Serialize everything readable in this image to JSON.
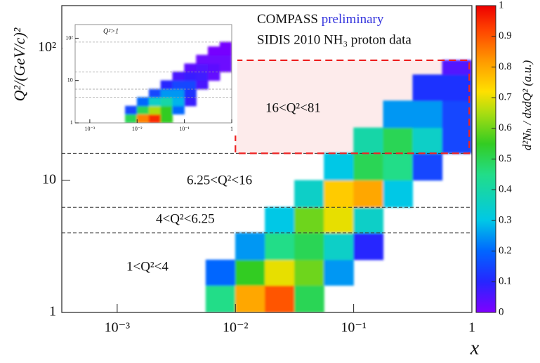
{
  "chart_data": [
    {
      "type": "heatmap",
      "title": "COMPASS",
      "title_tag": "preliminary",
      "title_tag_color": "#3333dd",
      "subtitle": "SIDIS 2010 NH₃ proton data",
      "x_label": "x",
      "y_label": "Q²/(GeV/c)²",
      "colorbar_label": "d²Nₕ / dxdQ² (a.u.)",
      "log_x": true,
      "log_y": true,
      "xlim": [
        0.00034,
        1
      ],
      "ylim": [
        1,
        210
      ],
      "xticks": [
        {
          "value": 0.001,
          "label": "10⁻³"
        },
        {
          "value": 0.01,
          "label": "10⁻²"
        },
        {
          "value": 0.1,
          "label": "10⁻¹"
        },
        1
      ],
      "yticks": [
        1,
        10,
        {
          "value": 100,
          "label": "10²"
        }
      ],
      "zlim": [
        0,
        1
      ],
      "zticks": [
        0,
        0.1,
        0.2,
        0.3,
        0.4,
        0.5,
        0.6,
        0.7,
        0.8,
        0.9,
        1
      ],
      "colorscale": [
        [
          0,
          "#7f00ff"
        ],
        [
          0.1,
          "#2626ff"
        ],
        [
          0.2,
          "#0066ff"
        ],
        [
          0.3,
          "#00c8e6"
        ],
        [
          0.45,
          "#22dd88"
        ],
        [
          0.55,
          "#33cc22"
        ],
        [
          0.65,
          "#aadd11"
        ],
        [
          0.72,
          "#ffe000"
        ],
        [
          0.82,
          "#ff9900"
        ],
        [
          0.92,
          "#ff4400"
        ],
        [
          1,
          "#ee0000"
        ]
      ],
      "xbins": [
        0.000316,
        0.000562,
        0.001,
        0.00178,
        0.00316,
        0.00562,
        0.01,
        0.0178,
        0.0316,
        0.0562,
        0.1,
        0.178,
        0.316,
        0.562,
        1
      ],
      "ybins": [
        1,
        1.6,
        2.5,
        4,
        6.25,
        10,
        16,
        25,
        40,
        63,
        81
      ],
      "z": [
        [
          null,
          null,
          null,
          null,
          null,
          0.45,
          0.8,
          0.9,
          0.5,
          null,
          null,
          null,
          null,
          null
        ],
        [
          null,
          null,
          null,
          null,
          null,
          0.2,
          0.55,
          0.7,
          0.6,
          0.25,
          null,
          null,
          null,
          null
        ],
        [
          null,
          null,
          null,
          null,
          null,
          null,
          0.25,
          0.45,
          0.5,
          0.35,
          0.1,
          null,
          null,
          null
        ],
        [
          null,
          null,
          null,
          null,
          null,
          null,
          null,
          0.3,
          0.6,
          0.7,
          0.35,
          null,
          null,
          null
        ],
        [
          null,
          null,
          null,
          null,
          null,
          null,
          null,
          null,
          0.35,
          0.75,
          0.8,
          0.3,
          null,
          null
        ],
        [
          null,
          null,
          null,
          null,
          null,
          null,
          null,
          null,
          null,
          0.3,
          0.5,
          0.45,
          0.15,
          null
        ],
        [
          null,
          null,
          null,
          null,
          null,
          null,
          null,
          null,
          null,
          null,
          0.4,
          0.5,
          0.35,
          0.15
        ],
        [
          null,
          null,
          null,
          null,
          null,
          null,
          null,
          null,
          null,
          null,
          null,
          0.25,
          0.25,
          0.15
        ],
        [
          null,
          null,
          null,
          null,
          null,
          null,
          null,
          null,
          null,
          null,
          null,
          null,
          0.12,
          0.12
        ],
        [
          null,
          null,
          null,
          null,
          null,
          null,
          null,
          null,
          null,
          null,
          null,
          null,
          null,
          0.05
        ]
      ],
      "region_bounds": [
        4,
        6.25,
        16
      ],
      "highlight": {
        "x": [
          0.01,
          0.95
        ],
        "y": [
          16,
          81
        ],
        "color": "#ee2222"
      },
      "regions": [
        "16<Q²<81",
        "6.25<Q²<16",
        "4<Q²<6.25",
        "1<Q²<4"
      ]
    },
    {
      "type": "heatmap",
      "annotation": "Q²>1",
      "log_x": true,
      "log_y": true,
      "xlim": [
        0.00049,
        1
      ],
      "ylim": [
        1,
        210
      ],
      "xticks": [
        {
          "value": 0.001,
          "label": "10⁻³"
        },
        {
          "value": 0.01,
          "label": "10⁻²"
        },
        {
          "value": 0.1,
          "label": "10⁻¹"
        },
        1
      ],
      "yticks": [
        1,
        10,
        {
          "value": 100,
          "label": "10²"
        }
      ],
      "zlim": [
        0,
        1
      ],
      "xbins": [
        0.000316,
        0.000562,
        0.001,
        0.00178,
        0.00316,
        0.00562,
        0.01,
        0.0178,
        0.0316,
        0.0562,
        0.1,
        0.178,
        0.316,
        0.562,
        1
      ],
      "ybins": [
        1,
        1.6,
        2.5,
        4,
        6.25,
        10,
        16,
        25,
        40,
        63,
        81
      ],
      "z": [
        [
          null,
          null,
          null,
          null,
          null,
          0.5,
          0.85,
          0.95,
          0.55,
          null,
          null,
          null,
          null,
          null
        ],
        [
          null,
          null,
          null,
          null,
          null,
          0.15,
          0.5,
          0.65,
          0.55,
          0.2,
          null,
          null,
          null,
          null
        ],
        [
          null,
          null,
          null,
          null,
          null,
          null,
          0.2,
          0.35,
          0.4,
          0.28,
          0.08,
          null,
          null,
          null
        ],
        [
          null,
          null,
          null,
          null,
          null,
          null,
          null,
          0.15,
          0.25,
          0.25,
          0.12,
          null,
          null,
          null
        ],
        [
          null,
          null,
          null,
          null,
          null,
          null,
          null,
          null,
          0.1,
          0.15,
          0.15,
          0.06,
          null,
          null
        ],
        [
          null,
          null,
          null,
          null,
          null,
          null,
          null,
          null,
          null,
          0.06,
          0.08,
          0.07,
          0.03,
          null
        ],
        [
          null,
          null,
          null,
          null,
          null,
          null,
          null,
          null,
          null,
          null,
          0.04,
          0.05,
          0.04,
          0.02
        ],
        [
          null,
          null,
          null,
          null,
          null,
          null,
          null,
          null,
          null,
          null,
          null,
          0.02,
          0.02,
          0.02
        ],
        [
          null,
          null,
          null,
          null,
          null,
          null,
          null,
          null,
          null,
          null,
          null,
          null,
          0.01,
          0.01
        ],
        [
          null,
          null,
          null,
          null,
          null,
          null,
          null,
          null,
          null,
          null,
          null,
          null,
          null,
          0.01
        ]
      ],
      "region_bounds": [
        4,
        6.25,
        16,
        81
      ]
    }
  ]
}
